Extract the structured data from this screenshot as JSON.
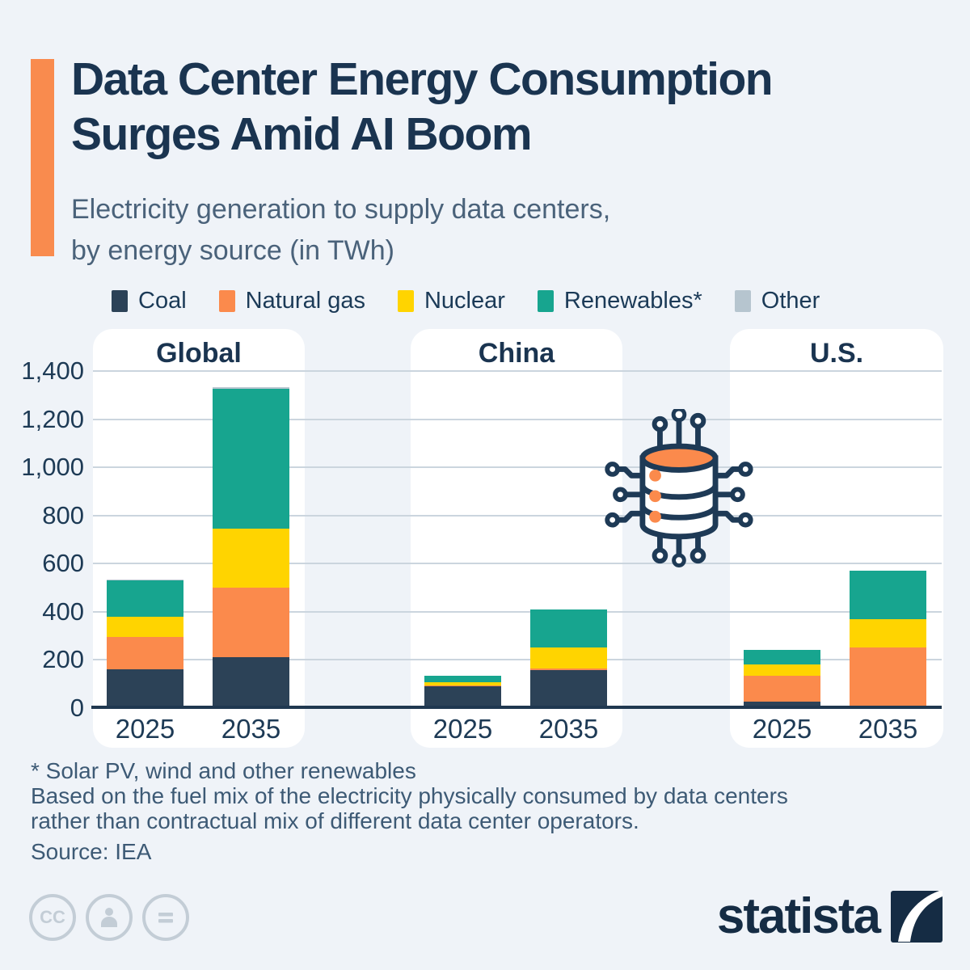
{
  "header": {
    "title_line1": "Data Center Energy Consumption",
    "title_line2": "Surges Amid AI Boom",
    "subtitle_line1": "Electricity generation to supply data centers,",
    "subtitle_line2": "by energy source (in TWh)"
  },
  "colors": {
    "background": "#EFF3F8",
    "panel": "#FFFFFF",
    "accent_bar": "#F98B4E",
    "gridline": "#CBD5DE",
    "axis": "#203850",
    "title_text": "#1A3450",
    "subtitle_text": "#4A627A",
    "footnote_text": "#3D5A75",
    "cc_gray": "#C3CDD6",
    "brand_navy": "#152C44",
    "series": {
      "coal": "#2C4257",
      "natural_gas": "#FB8A4C",
      "nuclear": "#FFD400",
      "renewables": "#17A58F",
      "other": "#B6C5CF"
    }
  },
  "legend": [
    {
      "key": "coal",
      "label": "Coal"
    },
    {
      "key": "natural_gas",
      "label": "Natural gas"
    },
    {
      "key": "nuclear",
      "label": "Nuclear"
    },
    {
      "key": "renewables",
      "label": "Renewables*"
    },
    {
      "key": "other",
      "label": "Other"
    }
  ],
  "chart_data": {
    "type": "bar",
    "stacked": true,
    "unit": "TWh",
    "ylim": [
      0,
      1400
    ],
    "ytick_labels": [
      "0",
      "200",
      "400",
      "600",
      "800",
      "1,000",
      "1,200",
      "1,400"
    ],
    "grid": true,
    "series_keys": [
      "coal",
      "natural_gas",
      "nuclear",
      "renewables",
      "other"
    ],
    "series_labels": {
      "coal": "Coal",
      "natural_gas": "Natural gas",
      "nuclear": "Nuclear",
      "renewables": "Renewables*",
      "other": "Other"
    },
    "groups": [
      {
        "title": "Global",
        "bars": [
          {
            "label": "2025",
            "values": {
              "coal": 160,
              "natural_gas": 135,
              "nuclear": 85,
              "renewables": 150,
              "other": 5
            }
          },
          {
            "label": "2035",
            "values": {
              "coal": 210,
              "natural_gas": 290,
              "nuclear": 245,
              "renewables": 580,
              "other": 7
            }
          }
        ]
      },
      {
        "title": "China",
        "bars": [
          {
            "label": "2025",
            "values": {
              "coal": 90,
              "natural_gas": 5,
              "nuclear": 12,
              "renewables": 26,
              "other": 0
            }
          },
          {
            "label": "2035",
            "values": {
              "coal": 158,
              "natural_gas": 6,
              "nuclear": 88,
              "renewables": 158,
              "other": 0
            }
          }
        ]
      },
      {
        "title": "U.S.",
        "bars": [
          {
            "label": "2025",
            "values": {
              "coal": 27,
              "natural_gas": 108,
              "nuclear": 45,
              "renewables": 63,
              "other": 0
            }
          },
          {
            "label": "2035",
            "values": {
              "coal": 10,
              "natural_gas": 242,
              "nuclear": 116,
              "renewables": 204,
              "other": 0
            }
          }
        ]
      }
    ]
  },
  "footnotes": [
    "* Solar PV, wind and other renewables",
    "Based on the fuel mix of the electricity physically consumed by data centers",
    "rather than contractual mix of different data center operators."
  ],
  "source": "Source: IEA",
  "branding": {
    "cc_label": "CC",
    "logo_text": "statista"
  }
}
